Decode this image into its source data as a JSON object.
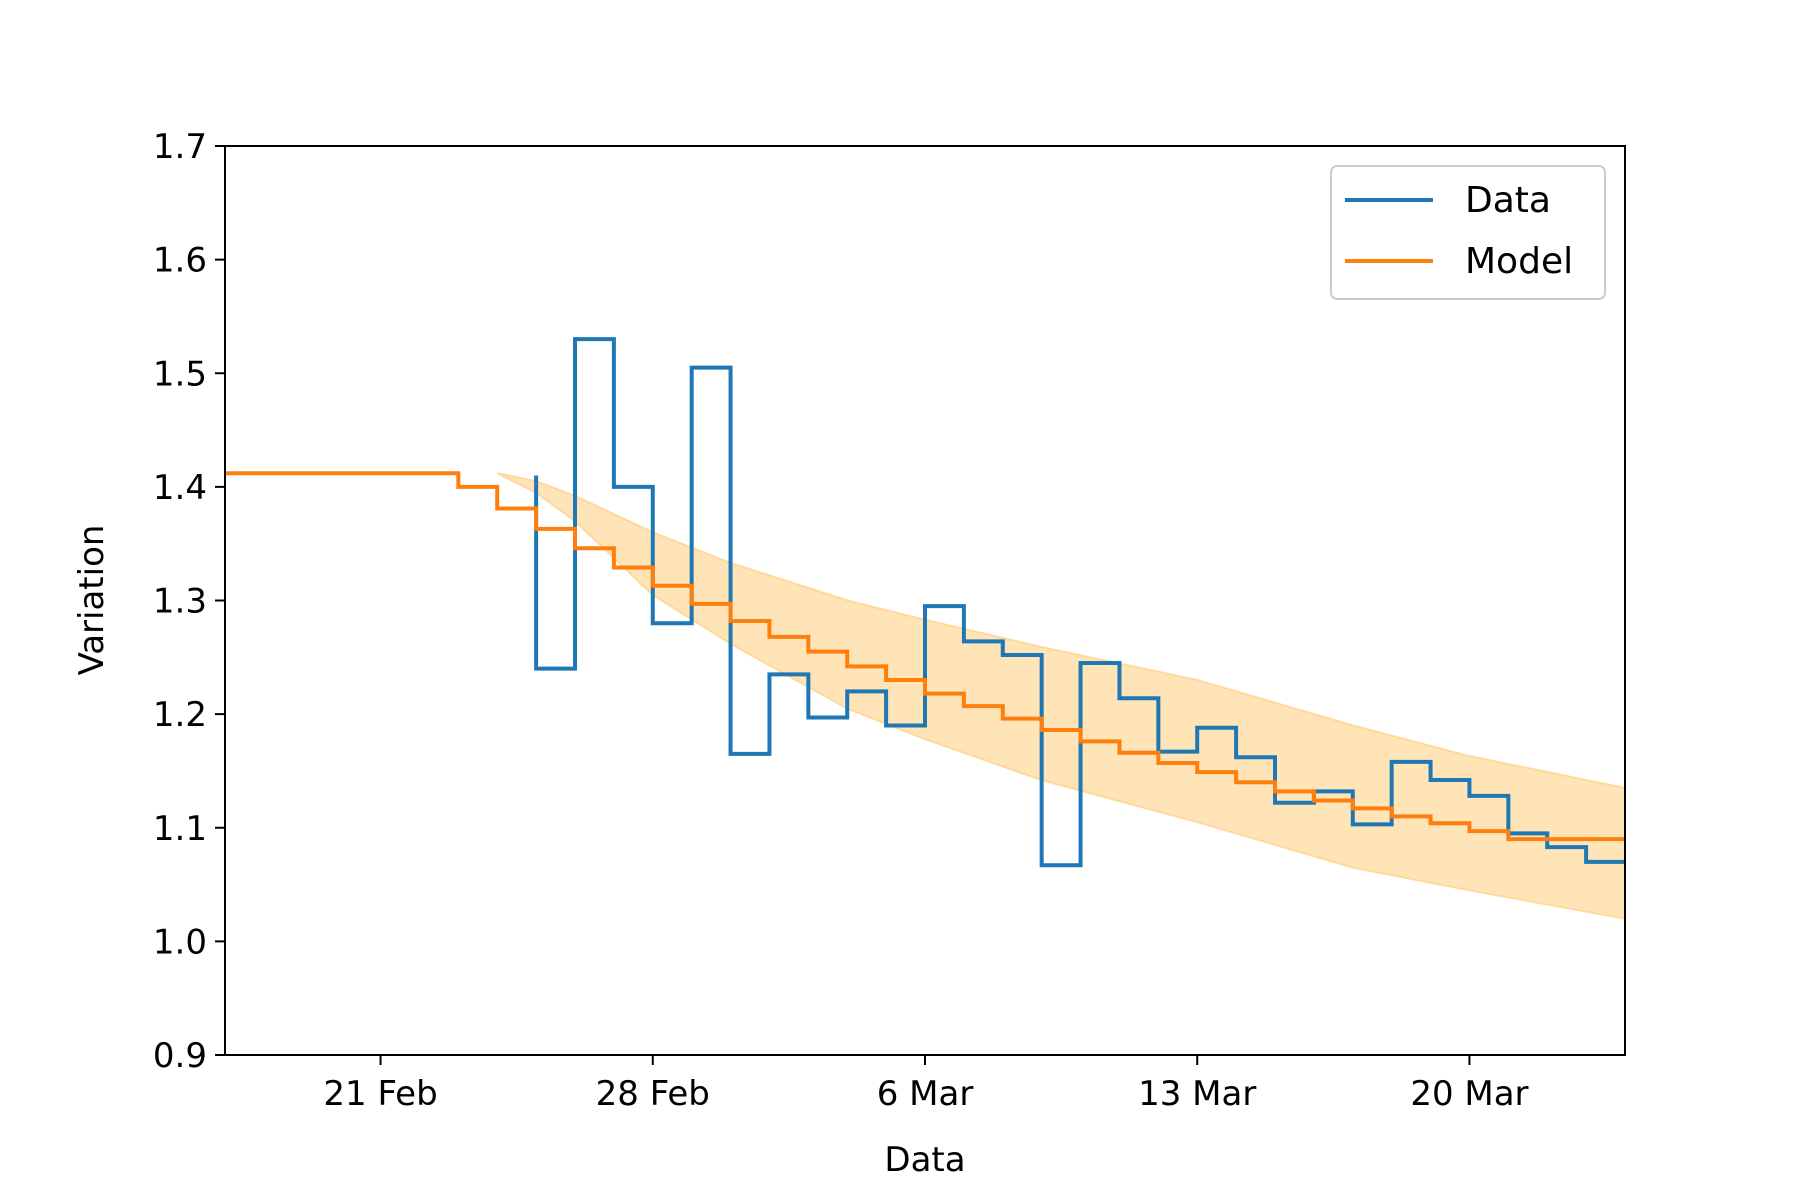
{
  "chart_data": {
    "type": "line",
    "title": "",
    "xlabel": "Data",
    "ylabel": "Variation",
    "xlim": [
      "2020-02-17",
      "2020-03-24"
    ],
    "ylim": [
      0.9,
      1.7
    ],
    "grid": false,
    "legend_position": "top-right",
    "xticks": [
      {
        "date": "2020-02-21",
        "label": "21 Feb"
      },
      {
        "date": "2020-02-28",
        "label": "28 Feb"
      },
      {
        "date": "2020-03-06",
        "label": "6 Mar"
      },
      {
        "date": "2020-03-13",
        "label": "13 Mar"
      },
      {
        "date": "2020-03-20",
        "label": "20 Mar"
      }
    ],
    "yticks": [
      {
        "value": 0.9,
        "label": "0.9"
      },
      {
        "value": 1.0,
        "label": "1.0"
      },
      {
        "value": 1.1,
        "label": "1.1"
      },
      {
        "value": 1.2,
        "label": "1.2"
      },
      {
        "value": 1.3,
        "label": "1.3"
      },
      {
        "value": 1.4,
        "label": "1.4"
      },
      {
        "value": 1.5,
        "label": "1.5"
      },
      {
        "value": 1.6,
        "label": "1.6"
      },
      {
        "value": 1.7,
        "label": "1.7"
      }
    ],
    "series": [
      {
        "name": "Data",
        "style": "step",
        "color": "#1f77b4",
        "x": [
          "2020-02-25",
          "2020-02-26",
          "2020-02-27",
          "2020-02-28",
          "2020-02-29",
          "2020-03-01",
          "2020-03-02",
          "2020-03-03",
          "2020-03-04",
          "2020-03-05",
          "2020-03-06",
          "2020-03-07",
          "2020-03-08",
          "2020-03-09",
          "2020-03-10",
          "2020-03-11",
          "2020-03-12",
          "2020-03-13",
          "2020-03-14",
          "2020-03-15",
          "2020-03-16",
          "2020-03-17",
          "2020-03-18",
          "2020-03-19",
          "2020-03-20",
          "2020-03-21",
          "2020-03-22",
          "2020-03-23",
          "2020-03-24"
        ],
        "values": [
          1.41,
          1.24,
          1.53,
          1.4,
          1.28,
          1.505,
          1.165,
          1.235,
          1.197,
          1.22,
          1.19,
          1.295,
          1.264,
          1.252,
          1.067,
          1.245,
          1.214,
          1.167,
          1.188,
          1.162,
          1.122,
          1.132,
          1.103,
          1.158,
          1.142,
          1.128,
          1.095,
          1.083,
          1.07
        ]
      },
      {
        "name": "Model",
        "style": "step",
        "color": "#ff7f0e",
        "x": [
          "2020-02-17",
          "2020-02-18",
          "2020-02-19",
          "2020-02-20",
          "2020-02-21",
          "2020-02-22",
          "2020-02-23",
          "2020-02-24",
          "2020-02-25",
          "2020-02-26",
          "2020-02-27",
          "2020-02-28",
          "2020-02-29",
          "2020-03-01",
          "2020-03-02",
          "2020-03-03",
          "2020-03-04",
          "2020-03-05",
          "2020-03-06",
          "2020-03-07",
          "2020-03-08",
          "2020-03-09",
          "2020-03-10",
          "2020-03-11",
          "2020-03-12",
          "2020-03-13",
          "2020-03-14",
          "2020-03-15",
          "2020-03-16",
          "2020-03-17",
          "2020-03-18",
          "2020-03-19",
          "2020-03-20",
          "2020-03-21",
          "2020-03-22",
          "2020-03-23",
          "2020-03-24"
        ],
        "values": [
          1.412,
          1.412,
          1.412,
          1.412,
          1.412,
          1.412,
          1.412,
          1.4,
          1.381,
          1.363,
          1.346,
          1.329,
          1.313,
          1.297,
          1.282,
          1.268,
          1.255,
          1.242,
          1.23,
          1.218,
          1.207,
          1.196,
          1.186,
          1.176,
          1.166,
          1.157,
          1.149,
          1.14,
          1.132,
          1.124,
          1.117,
          1.11,
          1.104,
          1.097,
          1.09,
          1.09,
          1.09
        ]
      }
    ],
    "band": {
      "color": "#ffd89a",
      "x": [
        "2020-02-24",
        "2020-02-25",
        "2020-02-26",
        "2020-02-28",
        "2020-03-01",
        "2020-03-04",
        "2020-03-06",
        "2020-03-09",
        "2020-03-13",
        "2020-03-17",
        "2020-03-20",
        "2020-03-24"
      ],
      "upper": [
        1.412,
        1.405,
        1.392,
        1.36,
        1.333,
        1.3,
        1.283,
        1.259,
        1.23,
        1.19,
        1.163,
        1.135
      ],
      "lower": [
        1.412,
        1.395,
        1.37,
        1.305,
        1.262,
        1.205,
        1.178,
        1.142,
        1.105,
        1.065,
        1.045,
        1.02
      ]
    }
  }
}
